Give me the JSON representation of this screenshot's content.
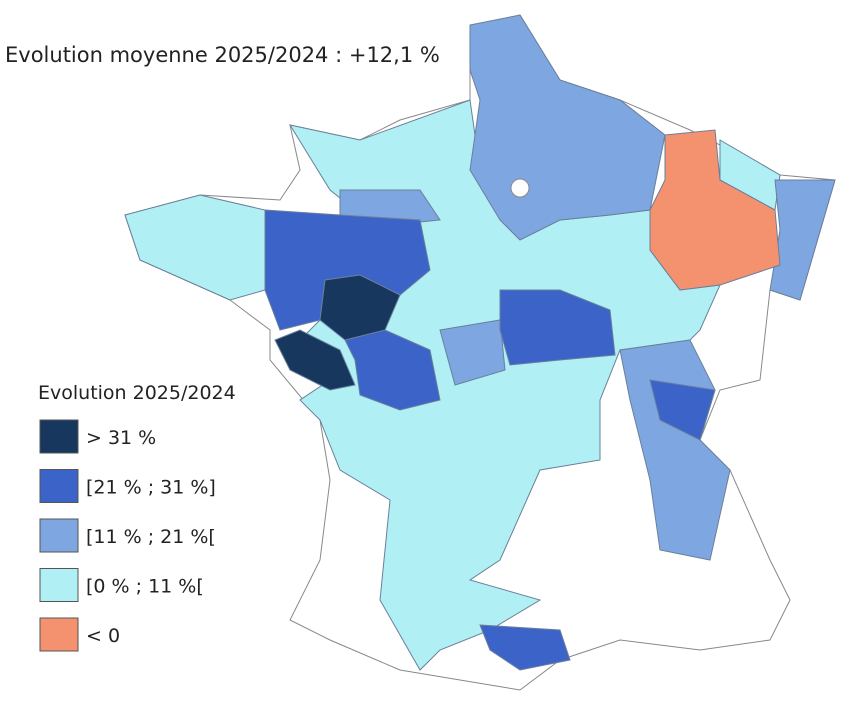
{
  "title": "Evolution moyenne 2025/2024 : +12,1 %",
  "legend": {
    "title": "Evolution 2025/2024",
    "items": [
      {
        "label": "> 31 %",
        "color": "#17375e"
      },
      {
        "label": "[21 % ; 31 %]",
        "color": "#3c64c8"
      },
      {
        "label": "[11 % ; 21 %[",
        "color": "#7ea6e0"
      },
      {
        "label": "[0 % ; 11 %[",
        "color": "#b0f0f5"
      },
      {
        "label": "< 0",
        "color": "#f4926f"
      }
    ]
  }
}
